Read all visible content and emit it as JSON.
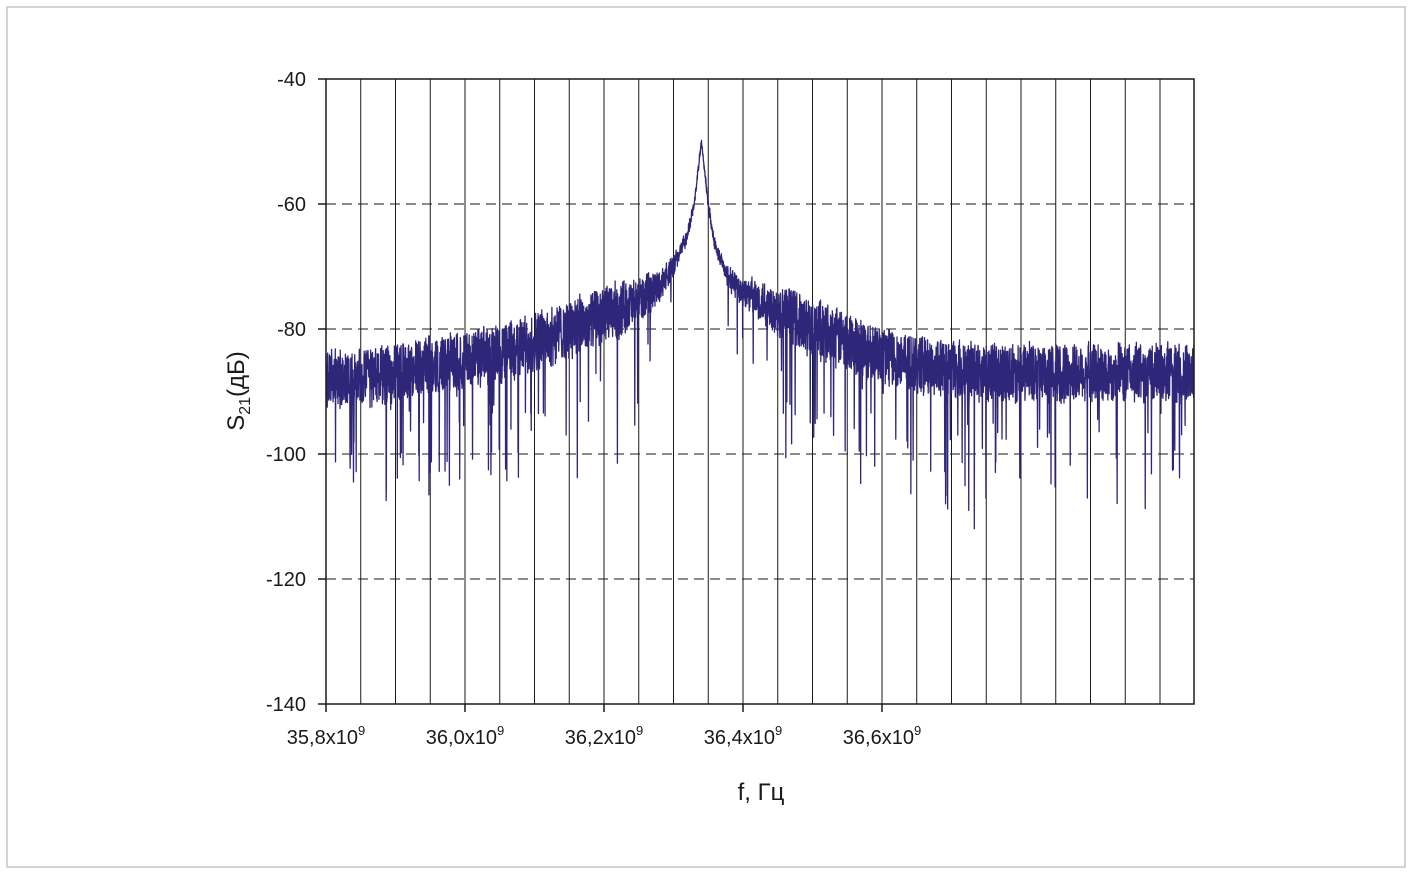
{
  "chart_data": {
    "type": "line",
    "xlabel": "f, Гц",
    "ylabel_main": "S",
    "ylabel_sub": "21",
    "ylabel_tail": "(дБ)",
    "x_tick_mantissas": [
      "35,8",
      "36,0",
      "36,2",
      "36,4",
      "36,6"
    ],
    "x_tick_suffix": "x10",
    "x_tick_exp": "9",
    "x_tick_values": [
      35800000000.0,
      36000000000.0,
      36200000000.0,
      36400000000.0,
      36600000000.0
    ],
    "y_ticks": [
      "-40",
      "-60",
      "-80",
      "-100",
      "-120",
      "-140"
    ],
    "y_tick_values": [
      -40,
      -60,
      -80,
      -100,
      -120,
      -140
    ],
    "xlim": [
      35800000000.0,
      37000000000.0
    ],
    "ylim": [
      -140,
      -40
    ],
    "grid": {
      "vertical": "solid",
      "horizontal": "dashed"
    },
    "series": [
      {
        "color": "#2e2678",
        "peak_freq_hz": 36340000000.0,
        "peak_level_db": -50,
        "noise_floor_db": -88,
        "points": [
          [
            35800000000.0,
            -88
          ],
          [
            35850000000.0,
            -88
          ],
          [
            35900000000.0,
            -87
          ],
          [
            35950000000.0,
            -86
          ],
          [
            36000000000.0,
            -85
          ],
          [
            36050000000.0,
            -84
          ],
          [
            36100000000.0,
            -82
          ],
          [
            36150000000.0,
            -80
          ],
          [
            36200000000.0,
            -78
          ],
          [
            36250000000.0,
            -75.5
          ],
          [
            36280000000.0,
            -73
          ],
          [
            36300000000.0,
            -70
          ],
          [
            36320000000.0,
            -65
          ],
          [
            36330000000.0,
            -60
          ],
          [
            36340000000.0,
            -50
          ],
          [
            36350000000.0,
            -60
          ],
          [
            36360000000.0,
            -67
          ],
          [
            36380000000.0,
            -72
          ],
          [
            36400000000.0,
            -74
          ],
          [
            36450000000.0,
            -77
          ],
          [
            36500000000.0,
            -80
          ],
          [
            36550000000.0,
            -82
          ],
          [
            36600000000.0,
            -84
          ],
          [
            36650000000.0,
            -85.5
          ],
          [
            36700000000.0,
            -86.5
          ],
          [
            36750000000.0,
            -87
          ],
          [
            36800000000.0,
            -87
          ],
          [
            36850000000.0,
            -87
          ],
          [
            37000000000.0,
            -87
          ]
        ]
      }
    ]
  }
}
